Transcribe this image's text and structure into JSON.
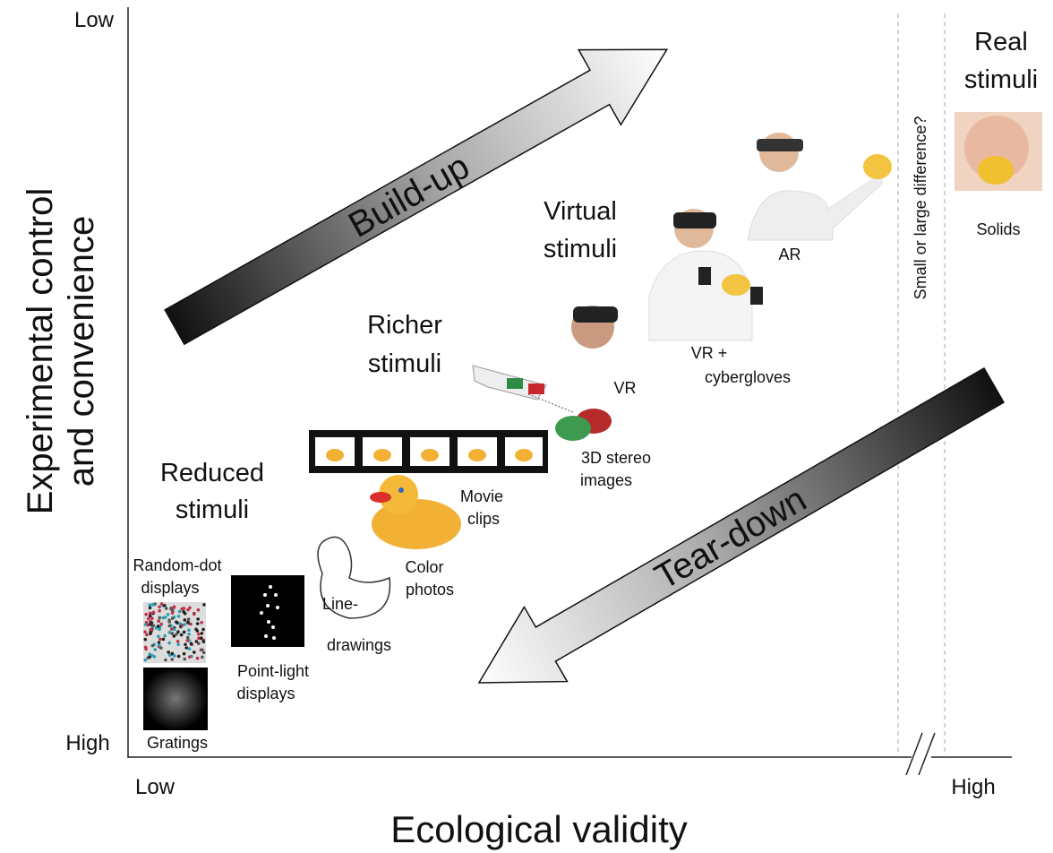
{
  "axes": {
    "y_title": [
      "Experimental control",
      "and convenience"
    ],
    "y_low": "Low",
    "y_high": "High",
    "x_title": "Ecological validity",
    "x_low": "Low",
    "x_high": "High"
  },
  "arrows": {
    "build_up": "Build-up",
    "tear_down": "Tear-down"
  },
  "divider": "Small or large difference?",
  "groups": {
    "reduced": [
      "Reduced",
      "stimuli"
    ],
    "richer": [
      "Richer",
      "stimuli"
    ],
    "virtual": [
      "Virtual",
      "stimuli"
    ],
    "real": [
      "Real",
      "stimuli"
    ]
  },
  "items": {
    "random_dot": [
      "Random-dot",
      "displays"
    ],
    "gratings": [
      "Gratings"
    ],
    "point_light": [
      "Point-light",
      "displays"
    ],
    "line_drawings": [
      "Line-",
      "drawings"
    ],
    "color_photos": [
      "Color",
      "photos"
    ],
    "movie_clips": [
      "Movie",
      "clips"
    ],
    "stereo": [
      "3D stereo",
      "images"
    ],
    "vr": [
      "VR"
    ],
    "vr_gloves": [
      "VR +",
      "cybergloves"
    ],
    "ar": [
      "AR"
    ],
    "solids": [
      "Solids"
    ]
  }
}
